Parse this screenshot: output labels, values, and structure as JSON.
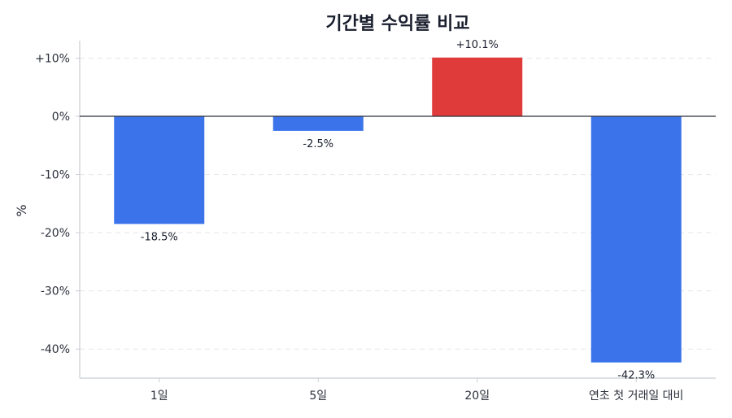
{
  "chart_data": {
    "type": "bar",
    "title": "기간별 수익률 비교",
    "xlabel": "",
    "ylabel": "%",
    "categories": [
      "1일",
      "5일",
      "20일",
      "연초 첫 거래일 대비"
    ],
    "values": [
      -18.5,
      -2.5,
      10.1,
      -42.3
    ],
    "value_labels": [
      "-18.5%",
      "-2.5%",
      "+10.1%",
      "-42.3%"
    ],
    "ylim": [
      -45,
      13
    ],
    "yticks": [
      10,
      0,
      -10,
      -20,
      -30,
      -40
    ],
    "ytick_labels": [
      "+10%",
      "0%",
      "-10%",
      "-20%",
      "-30%",
      "-40%"
    ],
    "grid": true,
    "legend": "none"
  },
  "colors": {
    "positive": "#e03b3b",
    "negative": "#3b73ea",
    "grid": "#e2e5ea",
    "zero_line": "#2b2f3a",
    "axis": "#c8ccd2"
  }
}
